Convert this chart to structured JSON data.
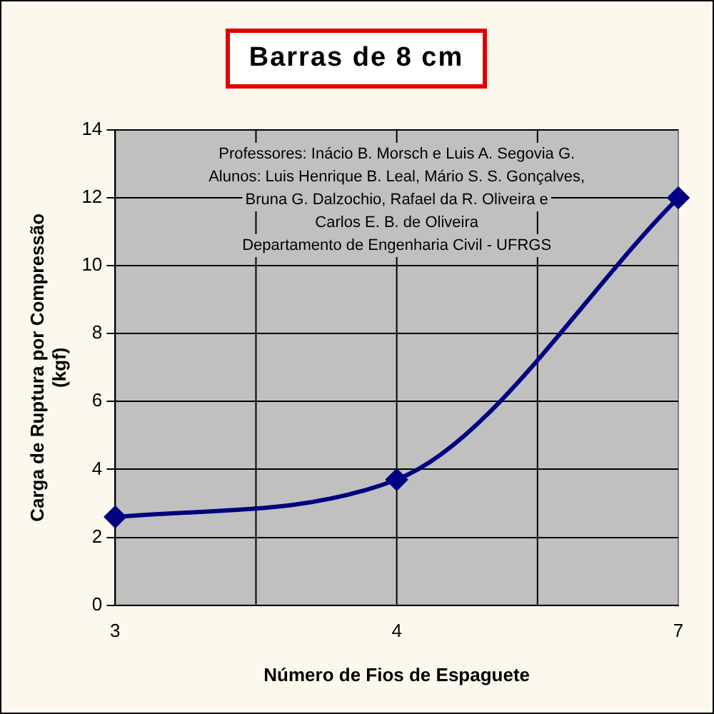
{
  "chart_data": {
    "type": "line",
    "title": "Barras de 8 cm",
    "xlabel": "Número de Fios de Espaguete",
    "ylabel": "Carga de Ruptura por Compressão (kgf)",
    "categories": [
      "3",
      "4",
      "7"
    ],
    "series": [
      {
        "color": "#000080",
        "values": [
          2.6,
          3.7,
          12.0
        ]
      }
    ],
    "ylim": [
      0,
      14
    ],
    "yticks": [
      0,
      2,
      4,
      6,
      8,
      10,
      12,
      14
    ],
    "grid": true,
    "legend": false,
    "marker": "diamond",
    "line_style": "solid",
    "annotations": [
      "Professores: Inácio B. Morsch e Luis A. Segovia G.",
      "Alunos: Luis Henrique B. Leal, Mário S. S. Gonçalves,",
      "Bruna G. Dalzochio, Rafael da R. Oliveira e",
      "Carlos E. B. de Oliveira",
      "Departamento de Engenharia Civil - UFRGS"
    ]
  }
}
